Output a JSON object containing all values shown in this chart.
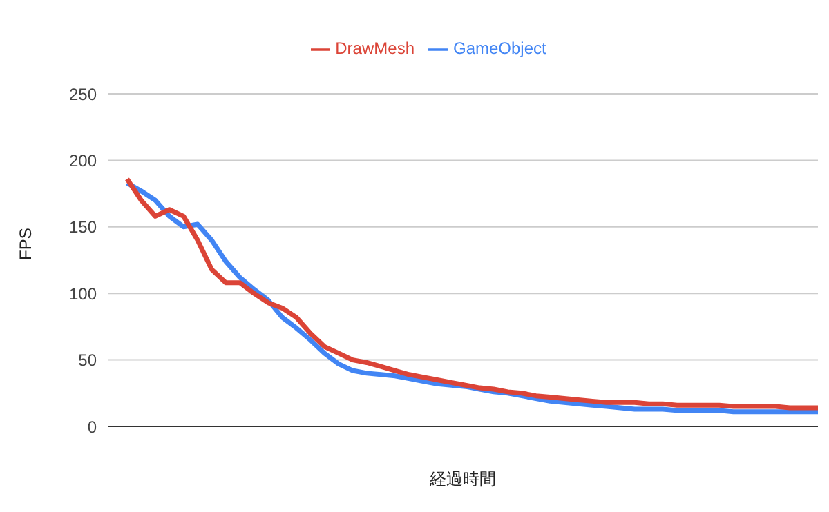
{
  "chart_data": {
    "type": "line",
    "xlabel": "経過時間",
    "ylabel": "FPS",
    "categories": [
      null,
      null,
      null,
      null,
      null,
      null,
      null,
      null,
      null,
      null,
      null,
      null,
      null,
      null,
      null,
      null,
      null,
      null,
      null,
      null,
      null,
      null,
      null,
      null,
      null,
      null,
      null,
      null,
      null,
      null,
      null,
      null,
      null,
      null,
      null,
      null,
      null,
      null,
      null,
      null,
      null,
      null,
      null,
      null,
      null,
      null,
      null,
      null,
      null,
      null
    ],
    "series": [
      {
        "name": "GameObject",
        "color": "#4285f4",
        "values": [
          183,
          177,
          170,
          158,
          150,
          152,
          140,
          124,
          112,
          103,
          95,
          82,
          74,
          65,
          55,
          47,
          42,
          40,
          39,
          38,
          36,
          34,
          32,
          31,
          30,
          28,
          26,
          25,
          23,
          21,
          19,
          18,
          17,
          16,
          15,
          14,
          13,
          13,
          13,
          12,
          12,
          12,
          12,
          11,
          11,
          11,
          11,
          11,
          11,
          11
        ]
      },
      {
        "name": "DrawMesh",
        "color": "#db4437",
        "values": [
          186,
          170,
          158,
          163,
          158,
          140,
          118,
          108,
          108,
          100,
          93,
          89,
          82,
          70,
          60,
          55,
          50,
          48,
          45,
          42,
          39,
          37,
          35,
          33,
          31,
          29,
          28,
          26,
          25,
          23,
          22,
          21,
          20,
          19,
          18,
          18,
          18,
          17,
          17,
          16,
          16,
          16,
          16,
          15,
          15,
          15,
          15,
          14,
          14,
          14
        ]
      }
    ],
    "ylim": [
      0,
      250
    ],
    "yticks": [
      0,
      50,
      100,
      150,
      200,
      250
    ],
    "grid": "y",
    "legend": "top",
    "marker": "none",
    "line_style": "solid",
    "tick_labels": "y"
  }
}
